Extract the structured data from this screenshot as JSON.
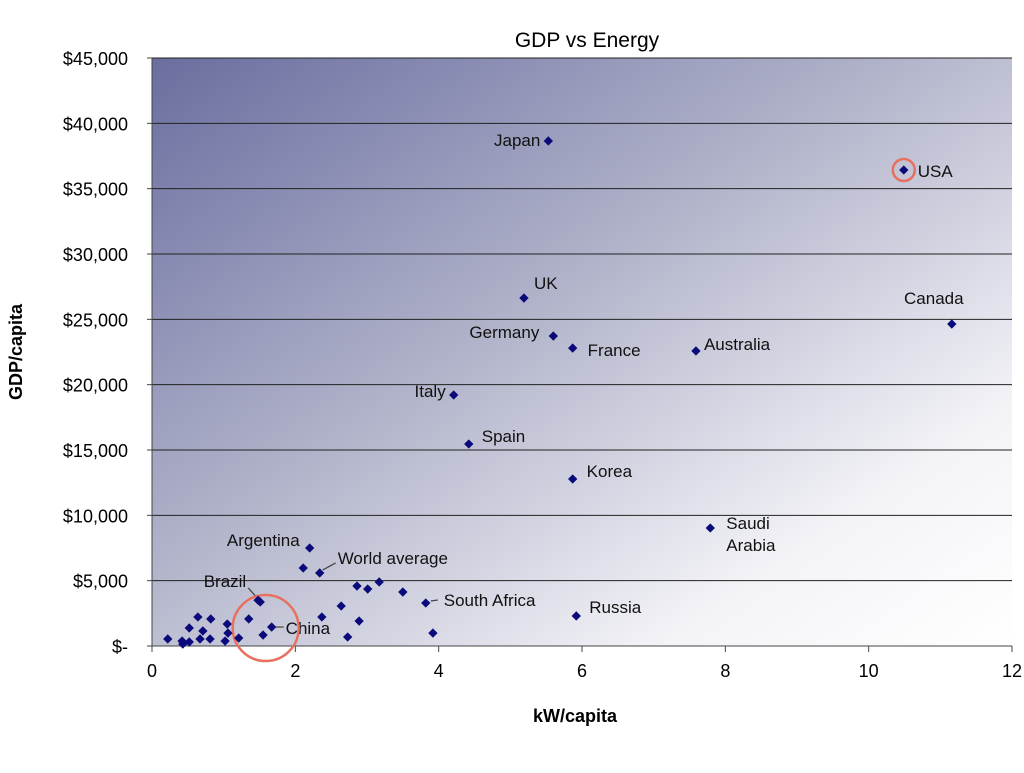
{
  "chart_data": {
    "type": "scatter",
    "title": "GDP vs Energy",
    "xlabel": "kW/capita",
    "ylabel": "GDP/capita",
    "xlim": [
      0,
      12
    ],
    "ylim": [
      0,
      45000
    ],
    "x_ticks": [
      "0",
      "2",
      "4",
      "6",
      "8",
      "10",
      "12"
    ],
    "y_ticks": [
      "$-",
      "$5,000",
      "$10,000",
      "$15,000",
      "$20,000",
      "$25,000",
      "$30,000",
      "$35,000",
      "$40,000",
      "$45,000"
    ],
    "grid": "horizontal",
    "background": "gradient from #6a6e9f (top-left) to #ffffff (bottom-right)",
    "marker_color": "#0a0a7a",
    "highlight_color": "#e8705f",
    "highlighted": [
      "USA",
      "China"
    ],
    "points": [
      {
        "label": "Japan",
        "x": 5.53,
        "y": 38650
      },
      {
        "label": "USA",
        "x": 10.49,
        "y": 36430
      },
      {
        "label": "UK",
        "x": 5.19,
        "y": 26630
      },
      {
        "label": "Canada",
        "x": 11.16,
        "y": 24640
      },
      {
        "label": "Germany",
        "x": 5.6,
        "y": 23720
      },
      {
        "label": "France",
        "x": 5.87,
        "y": 22800
      },
      {
        "label": "Australia",
        "x": 7.59,
        "y": 22580
      },
      {
        "label": "Italy",
        "x": 4.21,
        "y": 19210
      },
      {
        "label": "Spain",
        "x": 4.42,
        "y": 15460
      },
      {
        "label": "Korea",
        "x": 5.87,
        "y": 12780
      },
      {
        "label": "Saudi Arabia",
        "x": 7.79,
        "y": 9030
      },
      {
        "label": "Russia",
        "x": 5.92,
        "y": 2300
      },
      {
        "label": "Argentina",
        "x": 2.2,
        "y": 7500
      },
      {
        "label": "World average",
        "x": 2.34,
        "y": 5590
      },
      {
        "label": "South Africa",
        "x": 3.82,
        "y": 3290
      },
      {
        "label": "Brazil",
        "x": 1.51,
        "y": 3370
      },
      {
        "label": "China",
        "x": 1.67,
        "y": 1450
      },
      {
        "label": "",
        "x": 2.11,
        "y": 5970
      },
      {
        "label": "",
        "x": 2.86,
        "y": 4590
      },
      {
        "label": "",
        "x": 3.01,
        "y": 4360
      },
      {
        "label": "",
        "x": 3.17,
        "y": 4900
      },
      {
        "label": "",
        "x": 3.5,
        "y": 4130
      },
      {
        "label": "",
        "x": 2.64,
        "y": 3060
      },
      {
        "label": "",
        "x": 1.48,
        "y": 3500
      },
      {
        "label": "",
        "x": 2.37,
        "y": 2220
      },
      {
        "label": "",
        "x": 2.89,
        "y": 1910
      },
      {
        "label": "",
        "x": 3.92,
        "y": 990
      },
      {
        "label": "",
        "x": 2.73,
        "y": 690
      },
      {
        "label": "",
        "x": 1.35,
        "y": 2070
      },
      {
        "label": "",
        "x": 1.55,
        "y": 840
      },
      {
        "label": "",
        "x": 1.21,
        "y": 610
      },
      {
        "label": "",
        "x": 0.64,
        "y": 2220
      },
      {
        "label": "",
        "x": 0.82,
        "y": 2070
      },
      {
        "label": "",
        "x": 1.05,
        "y": 1680
      },
      {
        "label": "",
        "x": 0.52,
        "y": 1380
      },
      {
        "label": "",
        "x": 0.71,
        "y": 1150
      },
      {
        "label": "",
        "x": 1.06,
        "y": 990
      },
      {
        "label": "",
        "x": 0.22,
        "y": 540
      },
      {
        "label": "",
        "x": 0.42,
        "y": 380
      },
      {
        "label": "",
        "x": 0.43,
        "y": 150
      },
      {
        "label": "",
        "x": 0.52,
        "y": 310
      },
      {
        "label": "",
        "x": 0.67,
        "y": 540
      },
      {
        "label": "",
        "x": 0.81,
        "y": 540
      },
      {
        "label": "",
        "x": 1.02,
        "y": 380
      }
    ]
  }
}
